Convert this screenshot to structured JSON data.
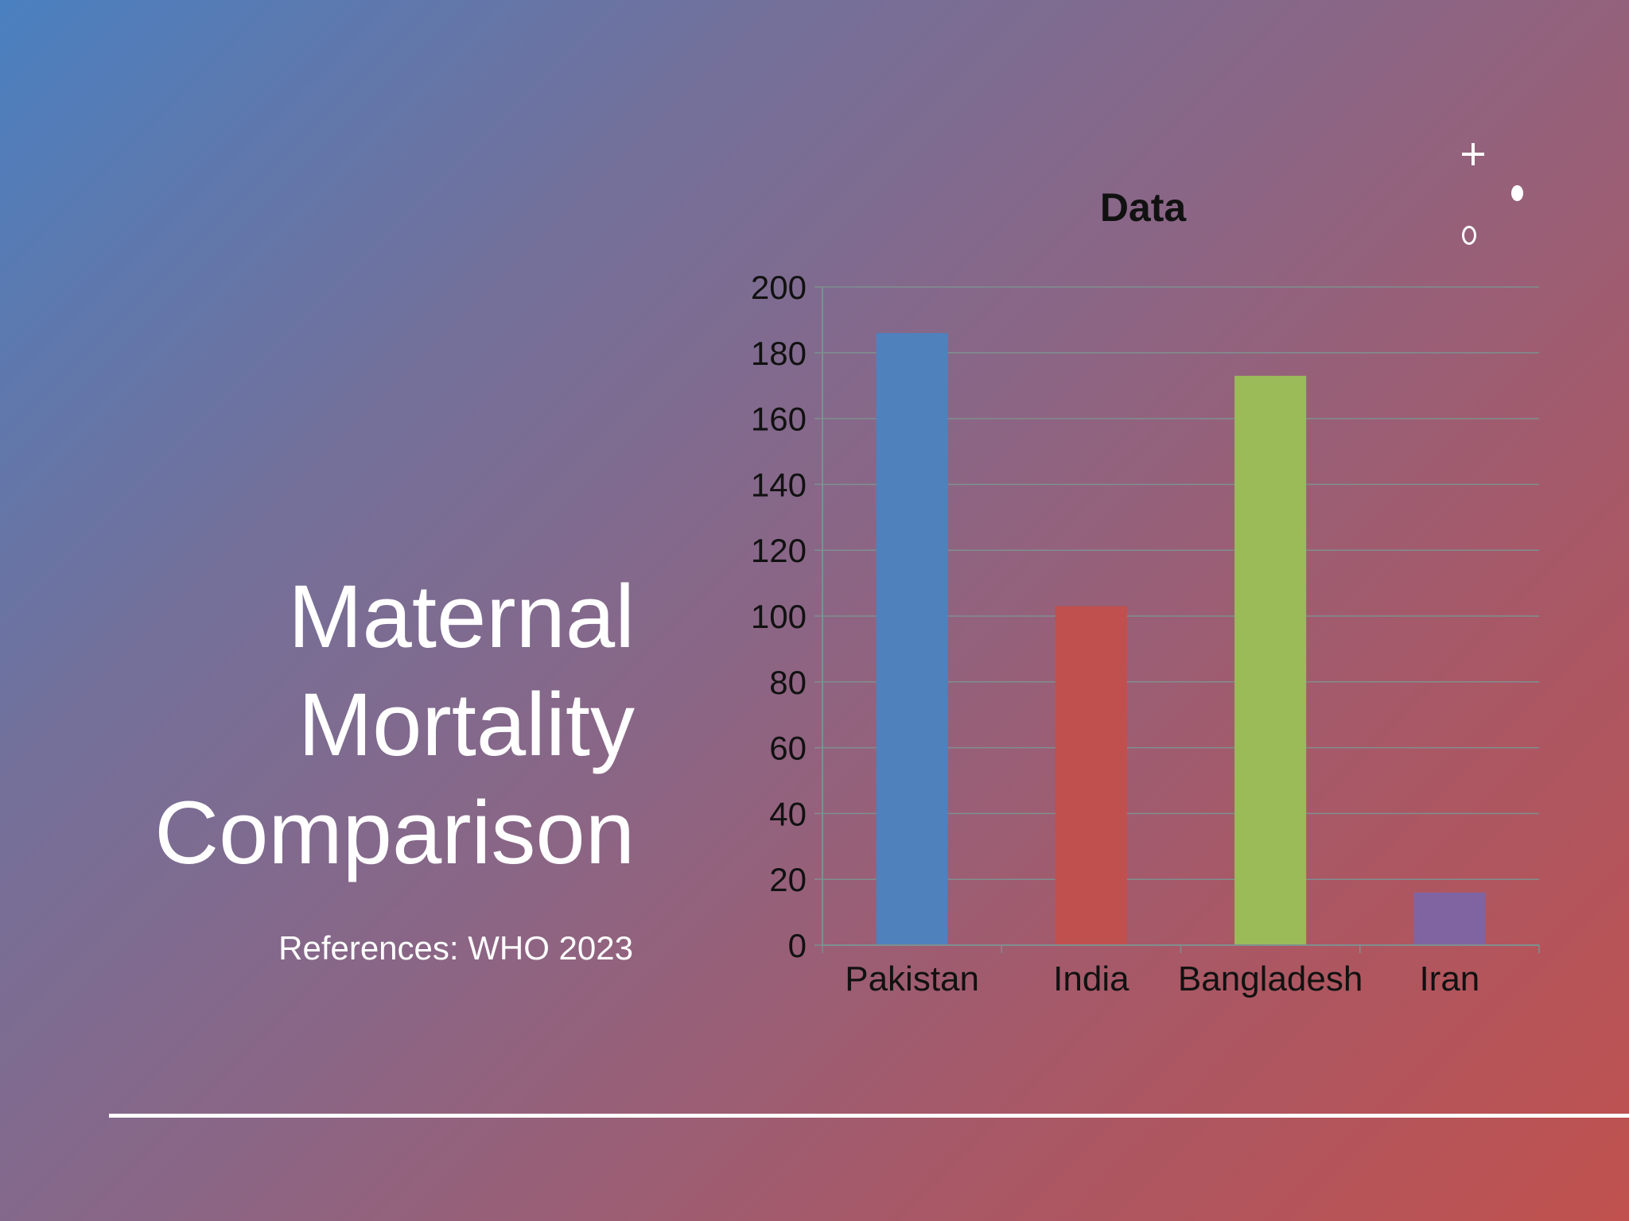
{
  "slide": {
    "title_lines": [
      "Maternal",
      "Mortality",
      "Comparison"
    ],
    "references": "References: WHO 2023"
  },
  "colors": {
    "series": [
      "#4f81bd",
      "#c0504d",
      "#9bbb59",
      "#8064a2"
    ],
    "axis": "#7f8f8f",
    "text": "#111111",
    "white": "#ffffff"
  },
  "decorations": [
    "plus-icon",
    "dot-icon",
    "ring-icon"
  ],
  "chart_data": {
    "type": "bar",
    "title": "Data",
    "categories": [
      "Pakistan",
      "India",
      "Bangladesh",
      "Iran"
    ],
    "values": [
      186,
      103,
      173,
      16
    ],
    "ylim": [
      0,
      200
    ],
    "yticks": [
      0,
      20,
      40,
      60,
      80,
      100,
      120,
      140,
      160,
      180,
      200
    ],
    "grid": true,
    "legend": "none"
  }
}
